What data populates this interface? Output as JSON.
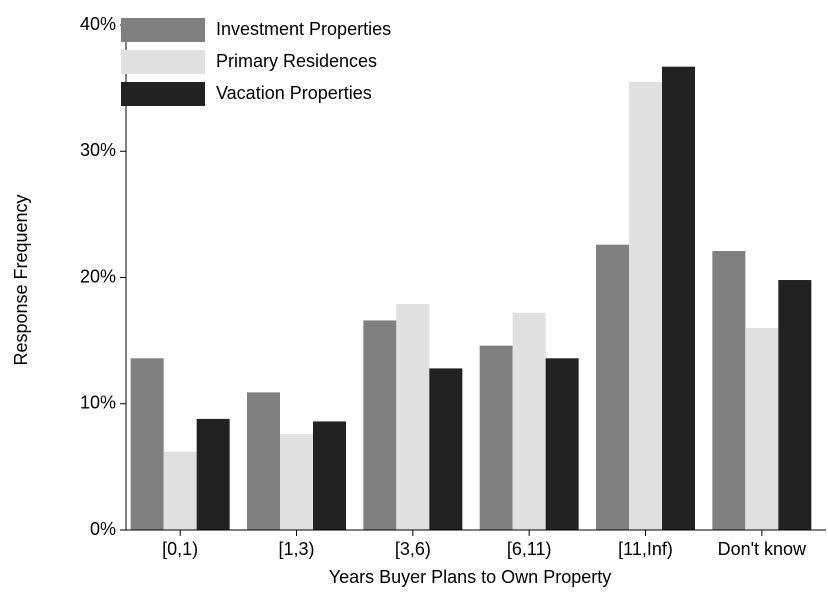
{
  "chart_data": {
    "type": "bar",
    "x_label": "Years Buyer Plans to Own Property",
    "y_label": "Response Frequency",
    "categories": [
      "[0,1)",
      "[1,3)",
      "[3,6)",
      "[6,11)",
      "[11,Inf)",
      "Don't know"
    ],
    "series": [
      {
        "name": "Investment Properties",
        "color": "#808080",
        "values": [
          13.6,
          10.9,
          16.6,
          14.6,
          22.6,
          22.1
        ]
      },
      {
        "name": "Primary Residences",
        "color": "#e0e0e0",
        "values": [
          6.2,
          7.6,
          17.9,
          17.2,
          35.5,
          16.0
        ]
      },
      {
        "name": "Vacation Properties",
        "color": "#222222",
        "values": [
          8.8,
          8.6,
          12.8,
          13.6,
          36.7,
          19.8
        ]
      }
    ],
    "ylim": [
      0,
      40
    ],
    "yticks": [
      {
        "value": 0,
        "label": "0%"
      },
      {
        "value": 10,
        "label": "10%"
      },
      {
        "value": 20,
        "label": "20%"
      },
      {
        "value": 30,
        "label": "30%"
      },
      {
        "value": 40,
        "label": "40%"
      }
    ],
    "legend": "upper-left"
  }
}
